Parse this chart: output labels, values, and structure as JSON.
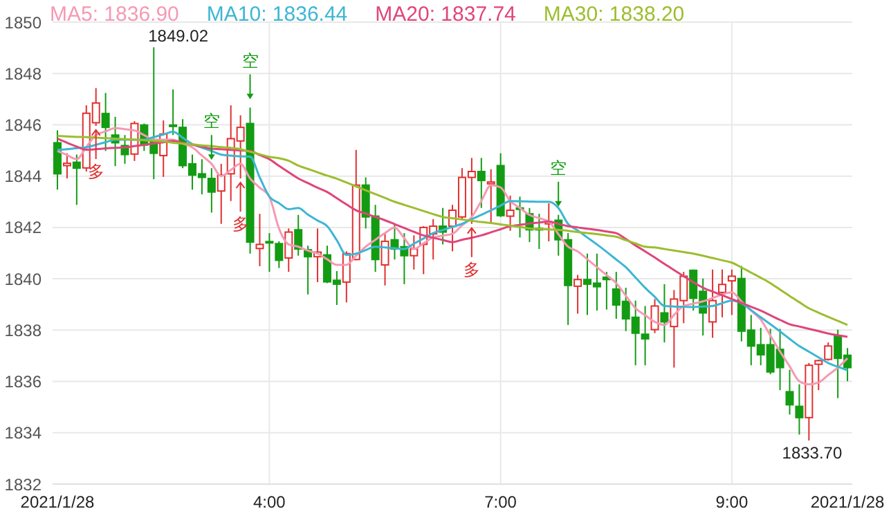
{
  "chart_data": {
    "type": "candlestick",
    "categories": [
      "2021/1/28",
      null,
      null,
      null,
      null,
      null,
      null,
      null,
      null,
      null,
      null,
      null,
      null,
      null,
      null,
      null,
      null,
      null,
      null,
      null,
      null,
      null,
      "4:00",
      null,
      null,
      null,
      null,
      null,
      null,
      null,
      null,
      null,
      null,
      null,
      null,
      null,
      null,
      null,
      null,
      null,
      null,
      null,
      null,
      null,
      null,
      null,
      "7:00",
      null,
      null,
      null,
      null,
      null,
      null,
      null,
      null,
      null,
      null,
      null,
      null,
      null,
      null,
      null,
      null,
      null,
      null,
      null,
      null,
      null,
      null,
      null,
      "9:00",
      null,
      null,
      null,
      null,
      null,
      null,
      null,
      null,
      null,
      null,
      null,
      "2021/1/28"
    ],
    "series": [
      {
        "type": "candlestick",
        "ohlc": [
          [
            1845.3,
            1845.78,
            1843.47,
            1844.09
          ],
          [
            1844.41,
            1844.89,
            1843.91,
            1844.5
          ],
          [
            1844.54,
            1844.84,
            1842.88,
            1844.31
          ],
          [
            1844.32,
            1846.76,
            1844.18,
            1846.45
          ],
          [
            1846.08,
            1847.43,
            1845.96,
            1846.85
          ],
          [
            1846.44,
            1847.24,
            1844.98,
            1845.9
          ],
          [
            1845.6,
            1846.31,
            1844.39,
            1845.3
          ],
          [
            1845.19,
            1845.6,
            1844.48,
            1844.84
          ],
          [
            1844.86,
            1846.14,
            1844.59,
            1846.05
          ],
          [
            1845.99,
            1846.05,
            1844.98,
            1845.21
          ],
          [
            1845.34,
            1849.02,
            1843.88,
            1844.89
          ],
          [
            1844.8,
            1846.17,
            1843.97,
            1845.64
          ],
          [
            1845.99,
            1847.38,
            1845.6,
            1845.94
          ],
          [
            1845.9,
            1846.22,
            1844.31,
            1844.41
          ],
          [
            1844.48,
            1844.84,
            1843.47,
            1844.04
          ],
          [
            1844.09,
            1844.66,
            1843.29,
            1843.95
          ],
          [
            1843.91,
            1844.31,
            1842.58,
            1843.38
          ],
          [
            1843.42,
            1844.48,
            1842.14,
            1844.04
          ],
          [
            1844.09,
            1846.76,
            1843.03,
            1845.46
          ],
          [
            1845.37,
            1846.37,
            1843.91,
            1845.9
          ],
          [
            1846.05,
            1846.67,
            1840.98,
            1841.43
          ],
          [
            1841.18,
            1842.53,
            1840.49,
            1841.34
          ],
          [
            1841.45,
            1841.78,
            1840.27,
            1841.4
          ],
          [
            1841.37,
            1841.46,
            1840.42,
            1840.72
          ],
          [
            1840.81,
            1841.96,
            1840.27,
            1841.82
          ],
          [
            1841.91,
            1842.49,
            1840.9,
            1841.16
          ],
          [
            1841.13,
            1841.29,
            1839.39,
            1840.86
          ],
          [
            1840.86,
            1841.96,
            1839.87,
            1841.04
          ],
          [
            1840.93,
            1841.29,
            1839.83,
            1839.88
          ],
          [
            1839.94,
            1840.3,
            1838.98,
            1839.79
          ],
          [
            1839.87,
            1841.07,
            1839.08,
            1840.98
          ],
          [
            1840.75,
            1845.02,
            1840.72,
            1843.65
          ],
          [
            1843.65,
            1843.95,
            1841.96,
            1842.41
          ],
          [
            1842.44,
            1842.88,
            1840.27,
            1840.75
          ],
          [
            1840.54,
            1841.78,
            1839.74,
            1841.46
          ],
          [
            1841.52,
            1842.14,
            1840.75,
            1841.16
          ],
          [
            1841.25,
            1841.78,
            1839.79,
            1840.9
          ],
          [
            1840.9,
            1841.69,
            1840.36,
            1841.16
          ],
          [
            1841.34,
            1842.05,
            1840.18,
            1842.0
          ],
          [
            1841.75,
            1842.32,
            1840.75,
            1842.05
          ],
          [
            1842.05,
            1842.76,
            1841.34,
            1841.82
          ],
          [
            1842.05,
            1842.88,
            1841.07,
            1842.67
          ],
          [
            1842.41,
            1844.31,
            1842.32,
            1843.95
          ],
          [
            1843.95,
            1844.71,
            1842.14,
            1844.18
          ],
          [
            1844.18,
            1844.71,
            1842.76,
            1843.83
          ],
          [
            1843.7,
            1844.27,
            1842.14,
            1843.77
          ],
          [
            1844.41,
            1844.89,
            1842.41,
            1842.46
          ],
          [
            1842.44,
            1843.24,
            1841.87,
            1842.67
          ],
          [
            1842.76,
            1843.2,
            1841.61,
            1842.71
          ],
          [
            1842.53,
            1842.76,
            1841.43,
            1841.91
          ],
          [
            1841.96,
            1842.53,
            1841.16,
            1841.93
          ],
          [
            1842.14,
            1842.94,
            1841.46,
            1842.21
          ],
          [
            1842.28,
            1842.49,
            1840.9,
            1841.52
          ],
          [
            1841.52,
            1841.78,
            1838.2,
            1839.74
          ],
          [
            1839.71,
            1840.15,
            1838.64,
            1839.97
          ],
          [
            1839.97,
            1840.98,
            1838.59,
            1839.79
          ],
          [
            1839.83,
            1840.98,
            1838.76,
            1839.69
          ],
          [
            1840.06,
            1840.27,
            1838.8,
            1839.97
          ],
          [
            1839.6,
            1840.27,
            1838.44,
            1838.98
          ],
          [
            1839.12,
            1839.65,
            1837.96,
            1838.44
          ],
          [
            1838.5,
            1839.15,
            1836.63,
            1837.88
          ],
          [
            1837.84,
            1838.94,
            1836.63,
            1837.66
          ],
          [
            1838.02,
            1839.21,
            1837.88,
            1838.94
          ],
          [
            1838.67,
            1839.79,
            1837.52,
            1838.32
          ],
          [
            1838.14,
            1839.56,
            1836.54,
            1839.21
          ],
          [
            1839.15,
            1840.27,
            1838.27,
            1840.1
          ],
          [
            1840.33,
            1840.36,
            1838.76,
            1839.24
          ],
          [
            1839.51,
            1840.01,
            1837.79,
            1838.67
          ],
          [
            1838.32,
            1840.36,
            1837.7,
            1839.15
          ],
          [
            1839.47,
            1840.36,
            1838.5,
            1839.78
          ],
          [
            1839.92,
            1840.36,
            1838.59,
            1840.1
          ],
          [
            1840.01,
            1840.5,
            1837.56,
            1837.96
          ],
          [
            1838.0,
            1838.59,
            1836.63,
            1837.38
          ],
          [
            1837.43,
            1838.09,
            1836.63,
            1837.04
          ],
          [
            1837.43,
            1838.05,
            1836.28,
            1836.37
          ],
          [
            1837.25,
            1838.05,
            1835.66,
            1836.54
          ],
          [
            1835.6,
            1836.45,
            1834.71,
            1835.09
          ],
          [
            1835.03,
            1835.89,
            1833.93,
            1834.59
          ],
          [
            1834.59,
            1836.72,
            1833.7,
            1836.63
          ],
          [
            1836.67,
            1836.85,
            1835.66,
            1836.81
          ],
          [
            1836.86,
            1837.52,
            1836.81,
            1837.38
          ],
          [
            1837.79,
            1838.02,
            1835.35,
            1836.9
          ],
          [
            1837.02,
            1837.3,
            1836.01,
            1836.54
          ]
        ],
        "colors": [
          "#139c13",
          "#e03030",
          "#139c13",
          "#e03030",
          "#e03030",
          "#139c13",
          "#139c13",
          "#139c13",
          "#e03030",
          "#139c13",
          "#139c13",
          "#e03030",
          "#139c13",
          "#139c13",
          "#139c13",
          "#139c13",
          "#139c13",
          "#e03030",
          "#e03030",
          "#e03030",
          "#139c13",
          "#e03030",
          "#139c13",
          "#139c13",
          "#e03030",
          "#139c13",
          "#139c13",
          "#e03030",
          "#139c13",
          "#139c13",
          "#e03030",
          "#e03030",
          "#139c13",
          "#139c13",
          "#e03030",
          "#139c13",
          "#139c13",
          "#e03030",
          "#e03030",
          "#e03030",
          "#139c13",
          "#e03030",
          "#e03030",
          "#e03030",
          "#139c13",
          "#e03030",
          "#139c13",
          "#e03030",
          "#139c13",
          "#139c13",
          "#139c13",
          "#e03030",
          "#139c13",
          "#139c13",
          "#e03030",
          "#139c13",
          "#139c13",
          "#139c13",
          "#139c13",
          "#139c13",
          "#139c13",
          "#139c13",
          "#e03030",
          "#139c13",
          "#e03030",
          "#e03030",
          "#139c13",
          "#139c13",
          "#e03030",
          "#e03030",
          "#e03030",
          "#139c13",
          "#139c13",
          "#139c13",
          "#139c13",
          "#139c13",
          "#139c13",
          "#139c13",
          "#e03030",
          "#e03030",
          "#e03030",
          "#139c13",
          "#139c13"
        ],
        "value_labels": [
          null,
          null,
          null,
          null,
          "多",
          null,
          null,
          null,
          null,
          null,
          "1849.02",
          null,
          null,
          null,
          null,
          null,
          "空",
          null,
          null,
          "多",
          "空",
          null,
          null,
          null,
          null,
          null,
          null,
          null,
          null,
          null,
          null,
          null,
          null,
          null,
          null,
          null,
          null,
          null,
          null,
          null,
          null,
          null,
          null,
          "多",
          null,
          null,
          null,
          null,
          null,
          null,
          null,
          null,
          "空",
          null,
          null,
          null,
          null,
          null,
          null,
          null,
          null,
          null,
          null,
          null,
          null,
          null,
          null,
          null,
          null,
          null,
          null,
          null,
          null,
          null,
          null,
          null,
          null,
          null,
          "1833.70",
          null,
          null,
          null,
          null
        ]
      },
      {
        "type": "line",
        "name": "MA5: 1836.90",
        "color": "#f59ab3",
        "values": [
          1844.98,
          1844.82,
          1844.66,
          1845.13,
          1845.6,
          1845.74,
          1845.87,
          1845.83,
          1845.78,
          1845.6,
          1845.42,
          1845.42,
          1845.42,
          1845.27,
          1845.12,
          1844.8,
          1844.48,
          1844.0,
          1844.24,
          1844.48,
          1843.91,
          1843.55,
          1843.2,
          1841.96,
          1841.34,
          1841.25,
          1841.1,
          1840.98,
          1840.76,
          1840.54,
          1840.54,
          1840.9,
          1841.25,
          1841.52,
          1841.78,
          1842.0,
          1841.58,
          1841.16,
          1841.38,
          1841.61,
          1841.68,
          1841.75,
          1842.08,
          1842.41,
          1843.03,
          1843.65,
          1843.56,
          1843.03,
          1842.76,
          1842.49,
          1842.36,
          1842.23,
          1841.74,
          1841.25,
          1841.07,
          1840.76,
          1840.45,
          1840.14,
          1839.83,
          1839.34,
          1838.85,
          1838.58,
          1838.32,
          1838.2,
          1838.59,
          1838.94,
          1839.03,
          1839.12,
          1839.25,
          1839.39,
          1839.47,
          1839.12,
          1838.76,
          1838.41,
          1837.79,
          1837.17,
          1836.59,
          1836.01,
          1835.89,
          1835.96,
          1836.25,
          1836.54,
          1836.9
        ]
      },
      {
        "type": "line",
        "name": "MA10: 1836.44",
        "color": "#3db6d3",
        "values": [
          1845.02,
          1845.05,
          1845.09,
          1845.12,
          1845.22,
          1845.32,
          1845.42,
          1845.42,
          1845.42,
          1845.42,
          1845.52,
          1845.62,
          1845.73,
          1845.5,
          1845.25,
          1845.11,
          1844.98,
          1844.84,
          1844.8,
          1844.77,
          1844.76,
          1843.95,
          1843.2,
          1842.95,
          1842.71,
          1842.76,
          1842.5,
          1842.27,
          1842.05,
          1841.5,
          1840.93,
          1840.98,
          1841.12,
          1841.25,
          1841.22,
          1841.19,
          1841.16,
          1841.37,
          1841.57,
          1841.78,
          1841.9,
          1842.02,
          1842.14,
          1842.32,
          1842.49,
          1842.67,
          1842.85,
          1843.03,
          1843.02,
          1843.01,
          1843.0,
          1843.0,
          1842.76,
          1842.14,
          1841.88,
          1841.61,
          1841.34,
          1841.05,
          1840.75,
          1840.45,
          1840.05,
          1839.65,
          1839.3,
          1838.94,
          1838.92,
          1838.91,
          1838.9,
          1838.92,
          1838.94,
          1839.05,
          1839.15,
          1839.05,
          1838.78,
          1838.5,
          1838.23,
          1837.95,
          1837.66,
          1837.38,
          1837.16,
          1836.94,
          1836.72,
          1836.57,
          1836.44
        ]
      },
      {
        "type": "line",
        "name": "MA20: 1837.74",
        "color": "#e0457b",
        "values": [
          1845.46,
          1845.3,
          1845.15,
          1845.03,
          1845.05,
          1845.08,
          1845.1,
          1845.12,
          1845.17,
          1845.22,
          1845.27,
          1845.32,
          1845.37,
          1845.3,
          1845.22,
          1845.15,
          1845.07,
          1845.05,
          1845.02,
          1845.0,
          1844.98,
          1844.82,
          1844.66,
          1844.4,
          1844.15,
          1843.91,
          1843.73,
          1843.55,
          1843.38,
          1843.14,
          1842.9,
          1842.67,
          1842.54,
          1842.41,
          1842.28,
          1842.13,
          1841.98,
          1841.83,
          1841.69,
          1841.6,
          1841.51,
          1841.43,
          1841.52,
          1841.6,
          1841.69,
          1841.81,
          1841.93,
          1842.05,
          1842.1,
          1842.15,
          1842.19,
          1842.23,
          1842.14,
          1842.05,
          1842.0,
          1841.95,
          1841.9,
          1841.84,
          1841.78,
          1841.55,
          1841.3,
          1841.07,
          1840.83,
          1840.58,
          1840.34,
          1840.1,
          1839.87,
          1839.65,
          1839.5,
          1839.36,
          1839.21,
          1839.06,
          1838.91,
          1838.76,
          1838.58,
          1838.4,
          1838.23,
          1838.14,
          1838.05,
          1837.96,
          1837.87,
          1837.8,
          1837.74
        ]
      },
      {
        "type": "line",
        "name": "MA30: 1838.20",
        "color": "#9dbd2f",
        "values": [
          1845.57,
          1845.55,
          1845.53,
          1845.52,
          1845.5,
          1845.48,
          1845.46,
          1845.44,
          1845.42,
          1845.4,
          1845.37,
          1845.35,
          1845.3,
          1845.27,
          1845.24,
          1845.2,
          1845.17,
          1845.13,
          1845.1,
          1845.05,
          1844.95,
          1844.85,
          1844.75,
          1844.7,
          1844.6,
          1844.41,
          1844.28,
          1844.15,
          1844.02,
          1843.9,
          1843.75,
          1843.6,
          1843.45,
          1843.3,
          1843.15,
          1843.0,
          1842.88,
          1842.76,
          1842.64,
          1842.52,
          1842.41,
          1842.36,
          1842.31,
          1842.26,
          1842.21,
          1842.17,
          1842.12,
          1842.07,
          1842.02,
          1841.96,
          1841.94,
          1841.92,
          1841.9,
          1841.87,
          1841.82,
          1841.78,
          1841.74,
          1841.69,
          1841.64,
          1841.5,
          1841.38,
          1841.25,
          1841.22,
          1841.16,
          1841.1,
          1841.04,
          1840.98,
          1840.9,
          1840.81,
          1840.72,
          1840.63,
          1840.44,
          1840.24,
          1840.04,
          1839.83,
          1839.58,
          1839.33,
          1839.09,
          1838.85,
          1838.68,
          1838.52,
          1838.36,
          1838.2
        ]
      }
    ],
    "ylim": [
      1832,
      1850
    ],
    "yticks": [
      1832,
      1834,
      1836,
      1838,
      1840,
      1842,
      1844,
      1846,
      1848,
      1850
    ],
    "grid": true,
    "legend": "top left"
  }
}
